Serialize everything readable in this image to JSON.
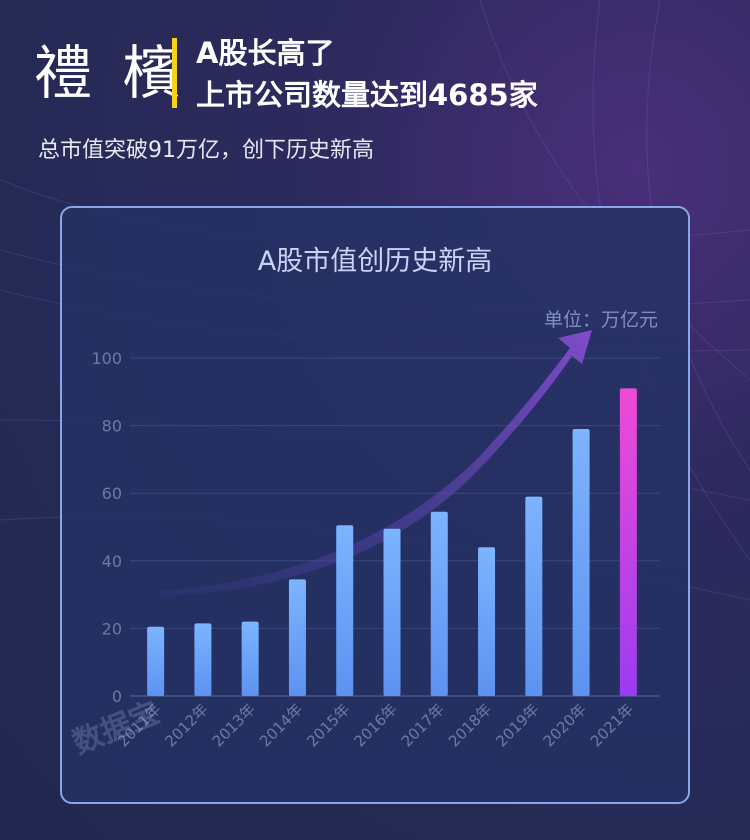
{
  "header": {
    "logo_text": "禮 檳",
    "headline_line1": "A股长高了",
    "headline_line2": "上市公司数量达到4685家",
    "subtitle": "总市值突破91万亿，创下历史新高"
  },
  "watermark": "数据宝",
  "colors": {
    "accent_bar": "#f7d11e",
    "bar_blue": "#6aa6ff",
    "bar_highlight_top": "#f04ad6",
    "bar_highlight_bottom": "#9a3cf0"
  },
  "chart_data": {
    "type": "bar",
    "title": "A股市值创历史新高",
    "unit": "单位：万亿元",
    "categories": [
      "2011年",
      "2012年",
      "2013年",
      "2014年",
      "2015年",
      "2016年",
      "2017年",
      "2018年",
      "2019年",
      "2020年",
      "2021年"
    ],
    "values": [
      20.5,
      21.5,
      22,
      34.5,
      50.5,
      49.5,
      54.5,
      44,
      59,
      79,
      91
    ],
    "highlight_index": 10,
    "ylim": [
      0,
      100
    ],
    "yticks": [
      0,
      20,
      40,
      60,
      80,
      100
    ],
    "grid": true,
    "xlabel": "",
    "ylabel": ""
  }
}
